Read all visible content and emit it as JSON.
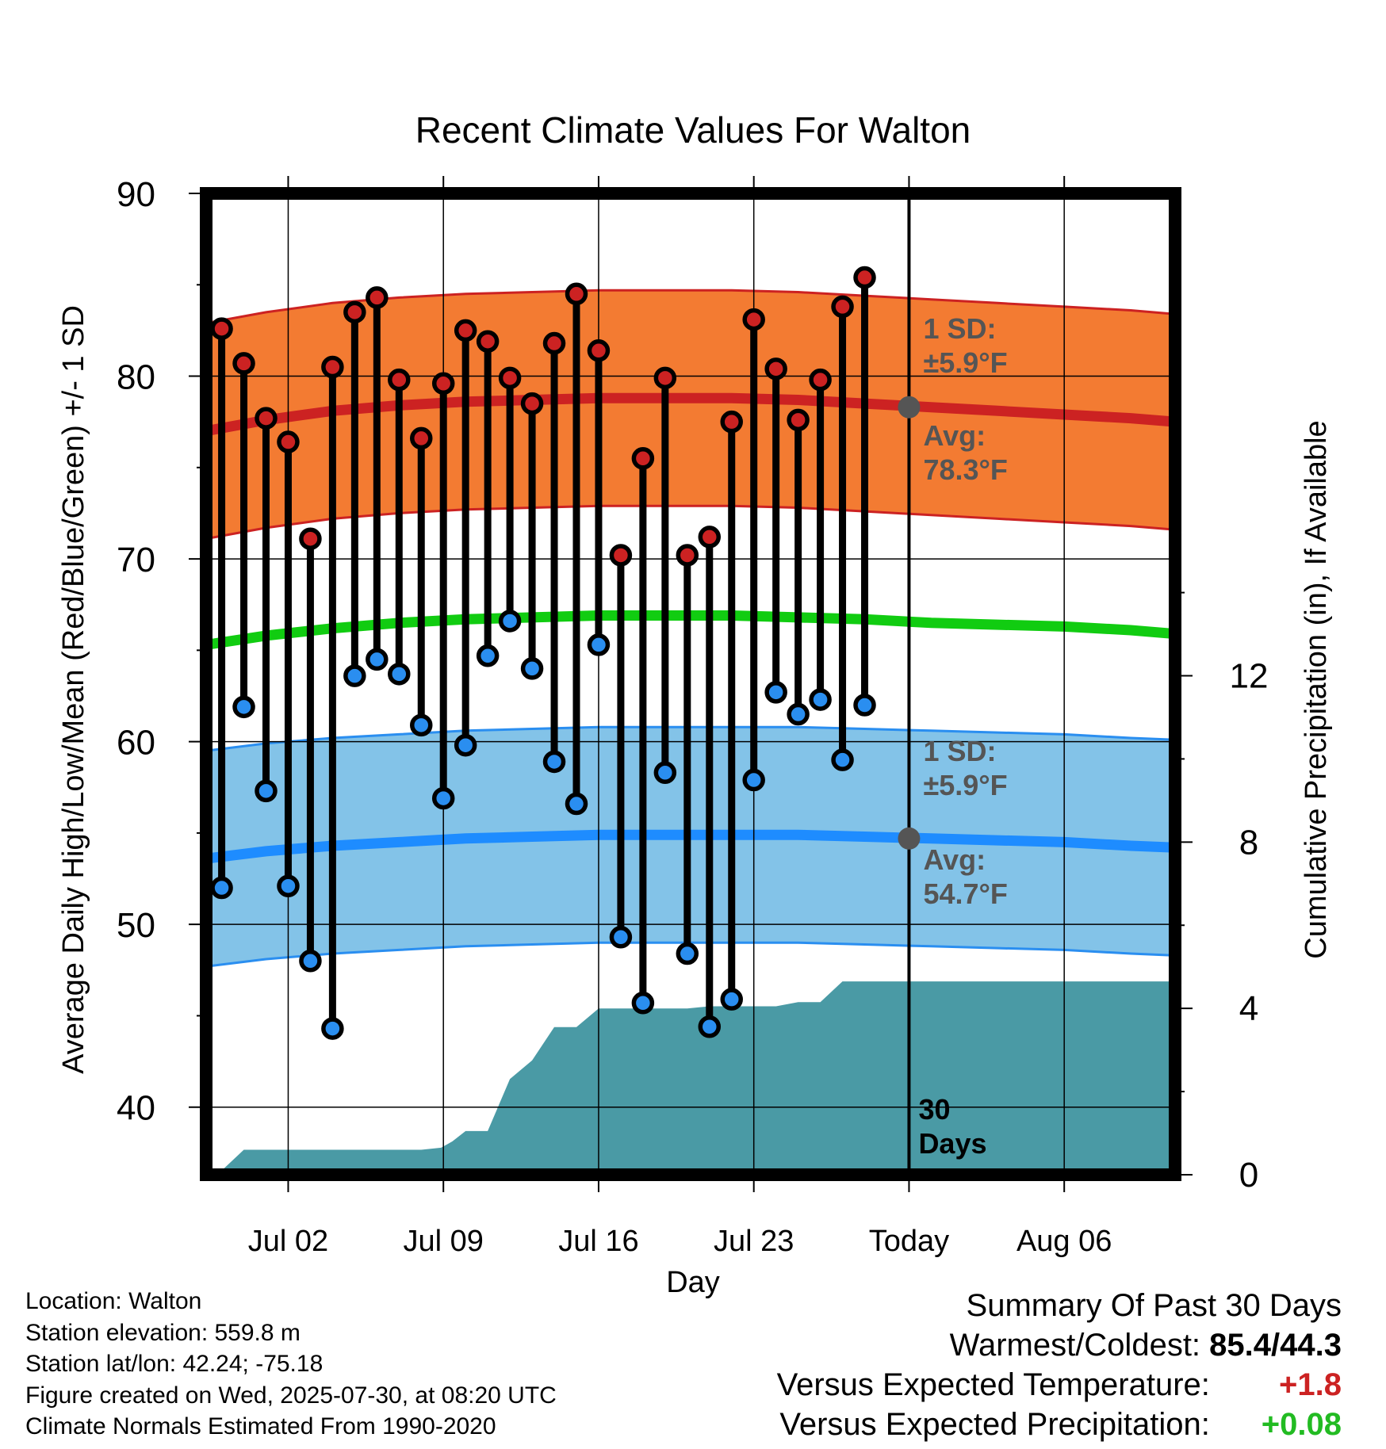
{
  "chart_data": {
    "type": "line",
    "title": "Recent Climate Values For Walton",
    "xlabel": "Day",
    "ylabel": "Average Daily High/Low/Mean (Red/Blue/Green) +/- 1 SD",
    "y2label": "Cumulative Precipitation (in), If Available",
    "ylim": [
      36.3,
      90
    ],
    "y_ticks": [
      40,
      50,
      60,
      70,
      80,
      90
    ],
    "y2lim": [
      0,
      23.6
    ],
    "y2_ticks": [
      0,
      4,
      8,
      12
    ],
    "xlim_days_from_jul01": [
      -2.7,
      41.0
    ],
    "x_ticks": [
      {
        "day": 1,
        "label": "Jul 02"
      },
      {
        "day": 8,
        "label": "Jul 09"
      },
      {
        "day": 15,
        "label": "Jul 16"
      },
      {
        "day": 22,
        "label": "Jul 23"
      },
      {
        "day": 29,
        "label": "Today"
      },
      {
        "day": 36,
        "label": "Aug 06"
      }
    ],
    "today_line": {
      "day": 29,
      "label": "30 Days"
    },
    "grid": true,
    "daily": {
      "days": [
        -2,
        -1,
        0,
        1,
        2,
        3,
        4,
        5,
        6,
        7,
        8,
        9,
        10,
        11,
        12,
        13,
        14,
        15,
        16,
        17,
        18,
        19,
        20,
        21,
        22,
        23,
        24,
        25,
        26,
        27,
        28
      ],
      "highs": [
        82.6,
        80.7,
        77.7,
        76.4,
        71.1,
        80.5,
        83.5,
        84.3,
        79.8,
        76.6,
        79.6,
        82.5,
        81.9,
        79.9,
        78.5,
        81.8,
        84.5,
        81.4,
        70.2,
        75.5,
        79.9,
        70.2,
        71.2,
        77.5,
        83.1,
        80.4,
        77.6,
        79.8,
        83.8,
        85.4
      ],
      "lows": [
        52.0,
        61.9,
        57.3,
        52.1,
        48.0,
        44.3,
        63.6,
        64.5,
        63.7,
        60.9,
        56.9,
        59.8,
        64.7,
        66.6,
        64.0,
        58.9,
        56.6,
        65.3,
        49.3,
        45.7,
        58.3,
        48.4,
        44.4,
        45.9,
        57.9,
        62.7,
        61.5,
        62.3,
        59.0,
        62.0
      ]
    },
    "normals": {
      "days": [
        -2.7,
        0,
        3,
        6,
        9,
        12,
        15,
        18,
        21,
        24,
        27,
        30,
        33,
        36,
        39,
        41
      ],
      "high_avg": [
        77.0,
        77.6,
        78.1,
        78.4,
        78.6,
        78.7,
        78.8,
        78.8,
        78.8,
        78.7,
        78.5,
        78.3,
        78.1,
        77.9,
        77.7,
        77.5
      ],
      "low_avg": [
        53.6,
        54.0,
        54.3,
        54.5,
        54.7,
        54.8,
        54.9,
        54.9,
        54.9,
        54.9,
        54.8,
        54.7,
        54.6,
        54.5,
        54.3,
        54.2
      ],
      "mean": [
        65.3,
        65.8,
        66.2,
        66.5,
        66.7,
        66.8,
        66.9,
        66.9,
        66.9,
        66.8,
        66.7,
        66.5,
        66.4,
        66.3,
        66.1,
        65.9
      ],
      "sd": 5.9
    },
    "precip": {
      "days": [
        -2.2,
        -1,
        0,
        1,
        2,
        3,
        4,
        5,
        6,
        7,
        7.9,
        8.4,
        9,
        10,
        11,
        12,
        13,
        14,
        15,
        16,
        17,
        18,
        19,
        20,
        21,
        22,
        23,
        24,
        25,
        26,
        27,
        28,
        29,
        36,
        41
      ],
      "cum_in": [
        0,
        0.6,
        0.6,
        0.6,
        0.6,
        0.6,
        0.6,
        0.6,
        0.6,
        0.6,
        0.65,
        0.8,
        1.05,
        1.05,
        2.3,
        2.75,
        3.55,
        3.55,
        4.0,
        4.0,
        4.0,
        4.0,
        4.0,
        4.05,
        4.05,
        4.05,
        4.05,
        4.15,
        4.15,
        4.65,
        4.65,
        4.65,
        4.65,
        4.65,
        4.65
      ]
    },
    "annotations": {
      "high_sd": "1 SD:\n±5.9°F",
      "high_avg": "Avg:\n78.3°F",
      "low_sd": "1 SD:\n±5.9°F",
      "low_avg": "Avg:\n54.7°F",
      "high_avg_value": 78.3,
      "low_avg_value": 54.7
    },
    "colors": {
      "high_marker": "#cc2222",
      "low_marker": "#2a8ef0",
      "high_band": "#f37b32",
      "high_avg_line": "#cc2222",
      "low_band": "#83c3e8",
      "low_band_edge": "#2a8ef0",
      "low_avg_line": "#1e8cff",
      "mean_line": "#11cc11",
      "precip_fill": "#4a9aa5",
      "annotation_text": "#555555"
    }
  },
  "footer": {
    "location": "Location: Walton",
    "elevation": "Station elevation: 559.8 m",
    "latlon": "Station lat/lon: 42.24; -75.18",
    "created": "Figure created on Wed, 2025-07-30, at 08:20 UTC",
    "normals": "Climate Normals Estimated From 1990-2020"
  },
  "summary": {
    "title": "Summary Of Past 30 Days",
    "warmest_label": "Warmest/Coldest:",
    "warmest_value": "85.4/44.3",
    "temp_label": "Versus Expected Temperature:",
    "temp_value": "+1.8",
    "precip_label": "Versus Expected Precipitation:",
    "precip_value": "+0.08"
  }
}
